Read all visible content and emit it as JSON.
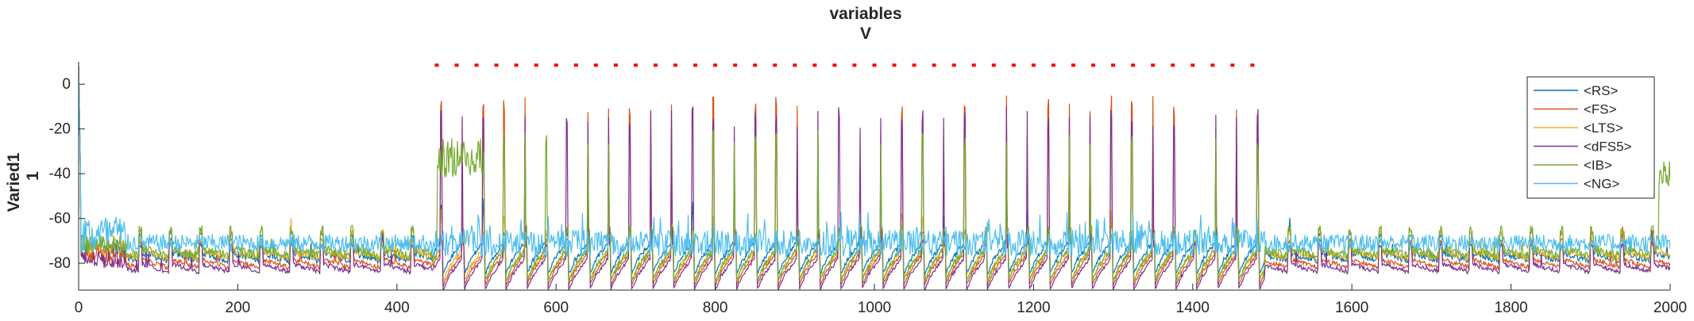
{
  "chart_data": {
    "type": "line",
    "title": "variables",
    "subtitle": "V",
    "xlabel": "",
    "ylabel": "Varied1",
    "ylabel_line2": "1",
    "xlim": [
      0,
      2000
    ],
    "ylim": [
      -92,
      10
    ],
    "xticks": [
      0,
      200,
      400,
      600,
      800,
      1000,
      1200,
      1400,
      1600,
      1800,
      2000
    ],
    "yticks": [
      0,
      -20,
      -40,
      -60,
      -80
    ],
    "grid": false,
    "legend_position": "top-right",
    "stim_marker": {
      "y": 8.5,
      "x_start": 450,
      "x_end": 1480,
      "spacing": 25,
      "color": "#ff0000"
    },
    "rhythm": {
      "first_peak": 455,
      "period": 26.3,
      "last_peak": 1480
    },
    "series": [
      {
        "name": "<RS>",
        "color": "#0072bd",
        "baseline": -75,
        "trough": -85,
        "peak": -55,
        "peak_prob": 0.18,
        "noise": 1.5
      },
      {
        "name": "<FS>",
        "color": "#d95319",
        "baseline": -78,
        "trough": -90,
        "peak": -10,
        "peak_prob": 0.6,
        "noise": 1.0
      },
      {
        "name": "<LTS>",
        "color": "#edb120",
        "baseline": -74,
        "trough": -88,
        "peak": -60,
        "peak_prob": 0.35,
        "noise": 1.5
      },
      {
        "name": "<dFS5>",
        "color": "#7e2f8e",
        "baseline": -80,
        "trough": -92,
        "peak": -15,
        "peak_prob": 0.85,
        "noise": 1.0
      },
      {
        "name": "<IB>",
        "color": "#77ac30",
        "baseline": -73,
        "trough": -88,
        "peak": -25,
        "peak_prob": 0.45,
        "noise": 2.0
      },
      {
        "name": "<NG>",
        "color": "#4dbeee",
        "baseline": -71,
        "trough": -78,
        "peak": -62,
        "peak_prob": 0.0,
        "noise": 4.0
      }
    ]
  }
}
